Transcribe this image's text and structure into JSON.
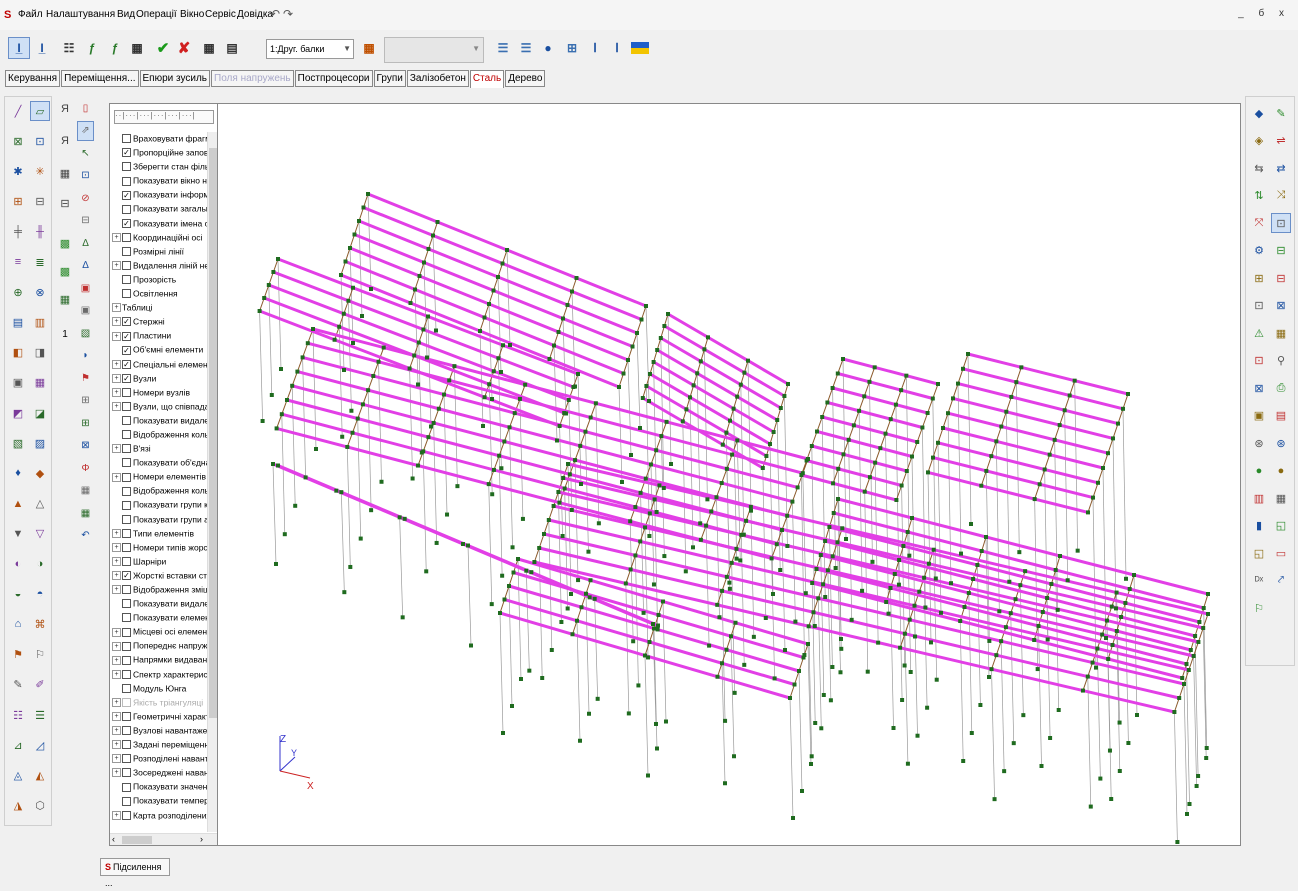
{
  "menubar": {
    "items": [
      "Файл",
      "Налаштування",
      "Вид",
      "Операції",
      "Вікно",
      "Сервіс",
      "Довідка"
    ],
    "undo_glyph": "↶",
    "redo_glyph": "↷",
    "window_buttons": "_ б х"
  },
  "toolbar": {
    "layer_select_value": "1:Друг. балки"
  },
  "tabs": [
    {
      "label": "Керування",
      "state": "normal"
    },
    {
      "label": "Переміщення...",
      "state": "normal"
    },
    {
      "label": "Епюри зусиль",
      "state": "normal"
    },
    {
      "label": "Поля напружень",
      "state": "disabled"
    },
    {
      "label": "Постпроцесори",
      "state": "normal"
    },
    {
      "label": "Групи",
      "state": "normal"
    },
    {
      "label": "Залізобетон",
      "state": "normal"
    },
    {
      "label": "Сталь",
      "state": "active"
    },
    {
      "label": "Дерево",
      "state": "normal"
    }
  ],
  "left_toolbar2_label": "1",
  "tree": {
    "items": [
      {
        "label": "Враховувати фрагм",
        "exp": false,
        "checked": false
      },
      {
        "label": "Пропорційне запове",
        "exp": false,
        "checked": true
      },
      {
        "label": "Зберегти стан фільт",
        "exp": false,
        "checked": false
      },
      {
        "label": "Показувати вікно на",
        "exp": false,
        "checked": false
      },
      {
        "label": "Показувати інформ",
        "exp": false,
        "checked": true
      },
      {
        "label": "Показувати загалы",
        "exp": false,
        "checked": false
      },
      {
        "label": "Показувати імена о",
        "exp": false,
        "checked": true
      },
      {
        "label": "Координаційні осі",
        "exp": true,
        "checked": false
      },
      {
        "label": "Розмірні лінії",
        "exp": false,
        "checked": false
      },
      {
        "label": "Видалення ліній нев",
        "exp": true,
        "checked": false
      },
      {
        "label": "Прозорість",
        "exp": false,
        "checked": false
      },
      {
        "label": "Освітлення",
        "exp": false,
        "checked": false
      },
      {
        "label": "Таблиці",
        "exp": true,
        "checked": null
      },
      {
        "label": "Стержні",
        "exp": true,
        "checked": true
      },
      {
        "label": "Пластини",
        "exp": true,
        "checked": true
      },
      {
        "label": "Об'ємні елементи",
        "exp": false,
        "checked": true
      },
      {
        "label": "Спеціальні елементи",
        "exp": true,
        "checked": true
      },
      {
        "label": "Вузли",
        "exp": true,
        "checked": true
      },
      {
        "label": "Номери вузлів",
        "exp": true,
        "checked": false
      },
      {
        "label": "Вузли, що співпадак",
        "exp": true,
        "checked": false
      },
      {
        "label": "Показувати видален",
        "exp": false,
        "checked": false
      },
      {
        "label": "Відображення колы",
        "exp": false,
        "checked": false
      },
      {
        "label": "В'язі",
        "exp": true,
        "checked": false
      },
      {
        "label": "Показувати об'єдна",
        "exp": false,
        "checked": false
      },
      {
        "label": "Номери елементів",
        "exp": true,
        "checked": false
      },
      {
        "label": "Відображення колы",
        "exp": false,
        "checked": false
      },
      {
        "label": "Показувати групи к",
        "exp": false,
        "checked": false
      },
      {
        "label": "Показувати групи а",
        "exp": false,
        "checked": false
      },
      {
        "label": "Типи елементів",
        "exp": true,
        "checked": false
      },
      {
        "label": "Номери типів жорст",
        "exp": true,
        "checked": false
      },
      {
        "label": "Шарніри",
        "exp": true,
        "checked": false
      },
      {
        "label": "Жорсткі вставки ст",
        "exp": true,
        "checked": true
      },
      {
        "label": "Відображення зміщ",
        "exp": true,
        "checked": false
      },
      {
        "label": "Показувати видален",
        "exp": false,
        "checked": false
      },
      {
        "label": "Показувати елемен",
        "exp": false,
        "checked": false
      },
      {
        "label": "Місцеві осі елемент",
        "exp": true,
        "checked": false
      },
      {
        "label": "Попереднє напруже",
        "exp": true,
        "checked": false
      },
      {
        "label": "Напрямки видаван",
        "exp": true,
        "checked": false
      },
      {
        "label": "Спектр характерист",
        "exp": true,
        "checked": false
      },
      {
        "label": "Модуль Юнга",
        "exp": false,
        "checked": false
      },
      {
        "label": "Якість тріангуляці",
        "exp": true,
        "checked": false,
        "dim": true
      },
      {
        "label": "Геометричні характ",
        "exp": true,
        "checked": false
      },
      {
        "label": "Вузлові навантажен",
        "exp": true,
        "checked": false
      },
      {
        "label": "Задані переміщення",
        "exp": true,
        "checked": false
      },
      {
        "label": "Розподілені наванта",
        "exp": true,
        "checked": false
      },
      {
        "label": "Зосереджені наванг",
        "exp": true,
        "checked": false
      },
      {
        "label": "Показувати значені",
        "exp": false,
        "checked": false
      },
      {
        "label": "Показувати темпер",
        "exp": false,
        "checked": false
      },
      {
        "label": "Карта розподілених",
        "exp": true,
        "checked": false
      }
    ]
  },
  "axes": {
    "z": "Z",
    "y": "Y",
    "x": "X"
  },
  "colors": {
    "beam": "#e23fe6",
    "secondary": "#8b5a2b",
    "column": "#9a9a9a",
    "node": "#1f6b1f",
    "axis": "#3333cc",
    "axis_x": "#cc2222"
  },
  "status_tab_label": "Підсилення ..."
}
